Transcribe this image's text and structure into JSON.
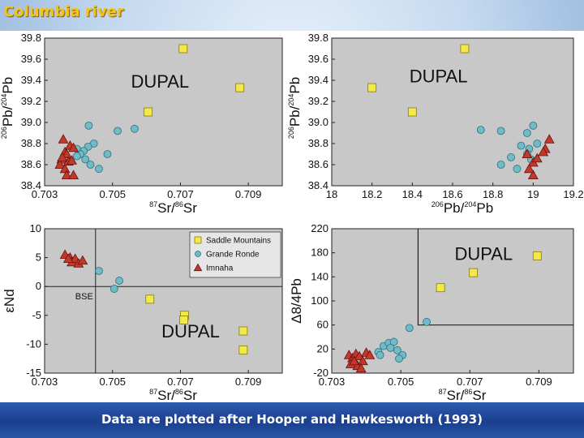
{
  "page": {
    "title": "Columbia river",
    "caption": "Data are plotted after Hooper and Hawkesworth (1993)"
  },
  "colors": {
    "plot_background": "#c8c8c8",
    "saddle_mountains": "#f2ea4c",
    "grande_ronde": "#6fbcc8",
    "imnaha": "#c0392b",
    "title": "#f3c51c",
    "caption_bar": "#1f4596"
  },
  "legend": {
    "items": [
      {
        "label": "Saddle Mountains",
        "marker": "square"
      },
      {
        "label": "Grande Ronde",
        "marker": "circle"
      },
      {
        "label": "Imnaha",
        "marker": "triangle"
      }
    ]
  },
  "chart_data": [
    {
      "id": "pb-vs-sr",
      "type": "scatter",
      "xlabel": "87Sr/86Sr",
      "ylabel": "206Pb/204Pb",
      "xlim": [
        0.703,
        0.71
      ],
      "ylim": [
        38.4,
        39.8
      ],
      "xticks": [
        "0.703",
        "0.705",
        "0.707",
        "0.709"
      ],
      "xtick_values": [
        0.703,
        0.705,
        0.707,
        0.709
      ],
      "yticks": [
        "39.8",
        "39.6",
        "39.4",
        "39.2",
        "39.0",
        "38.8",
        "38.6",
        "38.4"
      ],
      "ytick_values": [
        39.8,
        39.6,
        39.4,
        39.2,
        39.0,
        38.8,
        38.6,
        38.4
      ],
      "grid": false,
      "annotations": [
        {
          "text": "DUPAL",
          "x": 0.7064,
          "y": 39.33,
          "size": 22
        }
      ],
      "series": [
        {
          "name": "Saddle Mountains",
          "marker": "square",
          "points": [
            [
              0.70708,
              39.7
            ],
            [
              0.70875,
              39.33
            ],
            [
              0.70605,
              39.1
            ]
          ]
        },
        {
          "name": "Grande Ronde",
          "marker": "circle",
          "points": [
            [
              0.7043,
              38.97
            ],
            [
              0.70445,
              38.8
            ],
            [
              0.70428,
              38.77
            ],
            [
              0.70415,
              38.73
            ],
            [
              0.70405,
              38.7
            ],
            [
              0.70395,
              38.68
            ],
            [
              0.7042,
              38.65
            ],
            [
              0.70435,
              38.6
            ],
            [
              0.7046,
              38.56
            ],
            [
              0.70485,
              38.7
            ],
            [
              0.70515,
              38.92
            ],
            [
              0.70565,
              38.94
            ],
            [
              0.70395,
              38.75
            ]
          ]
        },
        {
          "name": "Imnaha",
          "marker": "triangle",
          "points": [
            [
              0.70355,
              38.84
            ],
            [
              0.7036,
              38.72
            ],
            [
              0.70365,
              38.7
            ],
            [
              0.70375,
              38.78
            ],
            [
              0.70385,
              38.76
            ],
            [
              0.7035,
              38.65
            ],
            [
              0.70345,
              38.6
            ],
            [
              0.7036,
              38.56
            ],
            [
              0.7037,
              38.63
            ],
            [
              0.7038,
              38.64
            ],
            [
              0.70365,
              38.5
            ],
            [
              0.70385,
              38.5
            ],
            [
              0.70352,
              38.67
            ]
          ]
        }
      ]
    },
    {
      "id": "pb-vs-pb",
      "type": "scatter",
      "xlabel": "206Pb/204Pb",
      "ylabel": "206Pb/204Pb",
      "xlim": [
        18.0,
        19.2
      ],
      "ylim": [
        38.4,
        39.8
      ],
      "xticks": [
        "18",
        "18.2",
        "18.4",
        "18.6",
        "18.8",
        "19",
        "19.2"
      ],
      "xtick_values": [
        18.0,
        18.2,
        18.4,
        18.6,
        18.8,
        19.0,
        19.2
      ],
      "yticks": [
        "39.8",
        "39.6",
        "39.4",
        "39.2",
        "39.0",
        "38.8",
        "38.6",
        "38.4"
      ],
      "ytick_values": [
        39.8,
        39.6,
        39.4,
        39.2,
        39.0,
        38.8,
        38.6,
        38.4
      ],
      "grid": false,
      "annotations": [
        {
          "text": "DUPAL",
          "x": 18.53,
          "y": 39.38,
          "size": 22
        }
      ],
      "series": [
        {
          "name": "Saddle Mountains",
          "marker": "square",
          "points": [
            [
              18.66,
              39.7
            ],
            [
              18.2,
              39.33
            ],
            [
              18.4,
              39.1
            ]
          ]
        },
        {
          "name": "Grande Ronde",
          "marker": "circle",
          "points": [
            [
              18.74,
              38.93
            ],
            [
              18.84,
              38.92
            ],
            [
              19.0,
              38.97
            ],
            [
              18.94,
              38.78
            ],
            [
              18.98,
              38.75
            ],
            [
              19.02,
              38.8
            ],
            [
              18.97,
              38.7
            ],
            [
              18.99,
              38.65
            ],
            [
              18.89,
              38.67
            ],
            [
              18.84,
              38.6
            ],
            [
              18.92,
              38.56
            ],
            [
              18.97,
              38.9
            ]
          ]
        },
        {
          "name": "Imnaha",
          "marker": "triangle",
          "points": [
            [
              18.97,
              38.7
            ],
            [
              19.0,
              38.62
            ],
            [
              19.06,
              38.75
            ],
            [
              19.08,
              38.84
            ],
            [
              19.05,
              38.72
            ],
            [
              19.0,
              38.5
            ],
            [
              18.98,
              38.56
            ],
            [
              19.02,
              38.66
            ]
          ]
        }
      ]
    },
    {
      "id": "nd-vs-sr",
      "type": "scatter",
      "xlabel": "87Sr/86Sr",
      "ylabel": "εNd",
      "xlim": [
        0.703,
        0.71
      ],
      "ylim": [
        -15,
        10
      ],
      "xticks": [
        "0.703",
        "0.705",
        "0.707",
        "0.709"
      ],
      "xtick_values": [
        0.703,
        0.705,
        0.707,
        0.709
      ],
      "yticks": [
        "10",
        "5",
        "0",
        "-5",
        "-10",
        "-15"
      ],
      "ytick_values": [
        10,
        5,
        0,
        -5,
        -10,
        -15
      ],
      "grid": false,
      "bse": {
        "label": "BSE",
        "x": 0.7045,
        "y": 0
      },
      "annotations": [
        {
          "text": "DUPAL",
          "x": 0.7073,
          "y": -8.8,
          "size": 22
        }
      ],
      "series": [
        {
          "name": "Saddle Mountains",
          "marker": "square",
          "points": [
            [
              0.7061,
              -2.2
            ],
            [
              0.70712,
              -5.0
            ],
            [
              0.7071,
              -5.8
            ],
            [
              0.70885,
              -7.7
            ],
            [
              0.70885,
              -11.0
            ]
          ]
        },
        {
          "name": "Grande Ronde",
          "marker": "circle",
          "points": [
            [
              0.7046,
              2.7
            ],
            [
              0.70505,
              -0.4
            ],
            [
              0.7052,
              1.0
            ]
          ]
        },
        {
          "name": "Imnaha",
          "marker": "triangle",
          "points": [
            [
              0.7036,
              5.5
            ],
            [
              0.70375,
              5.0
            ],
            [
              0.7038,
              4.2
            ],
            [
              0.7039,
              4.8
            ],
            [
              0.704,
              4.0
            ],
            [
              0.70412,
              4.5
            ],
            [
              0.7037,
              4.8
            ]
          ]
        }
      ]
    },
    {
      "id": "d84pb-vs-sr",
      "type": "scatter",
      "xlabel": "87Sr/86Sr",
      "ylabel": "Δ8/4Pb",
      "xlim": [
        0.703,
        0.71
      ],
      "ylim": [
        -20,
        220
      ],
      "xticks": [
        "0.703",
        "0.705",
        "0.707",
        "0.709"
      ],
      "xtick_values": [
        0.703,
        0.705,
        0.707,
        0.709
      ],
      "yticks": [
        "220",
        "180",
        "140",
        "100",
        "60",
        "20",
        "-20"
      ],
      "ytick_values": [
        220,
        180,
        140,
        100,
        60,
        20,
        -20
      ],
      "grid": false,
      "dupal_box": {
        "x_from": 0.7055,
        "x_to": 0.71,
        "y_from": 60,
        "y_to": 220
      },
      "annotations": [
        {
          "text": "DUPAL",
          "x": 0.7074,
          "y": 168,
          "size": 22
        }
      ],
      "series": [
        {
          "name": "Saddle Mountains",
          "marker": "square",
          "points": [
            [
              0.70615,
              122
            ],
            [
              0.7071,
              147
            ],
            [
              0.70895,
              175
            ]
          ]
        },
        {
          "name": "Grande Ronde",
          "marker": "circle",
          "points": [
            [
              0.70435,
              15
            ],
            [
              0.7045,
              25
            ],
            [
              0.70465,
              30
            ],
            [
              0.7048,
              32
            ],
            [
              0.7047,
              22
            ],
            [
              0.7049,
              18
            ],
            [
              0.70505,
              10
            ],
            [
              0.70525,
              55
            ],
            [
              0.70575,
              65
            ],
            [
              0.70495,
              4
            ],
            [
              0.7044,
              10
            ]
          ]
        },
        {
          "name": "Imnaha",
          "marker": "triangle",
          "points": [
            [
              0.7035,
              10
            ],
            [
              0.7036,
              5
            ],
            [
              0.7037,
              12
            ],
            [
              0.7038,
              8
            ],
            [
              0.7039,
              0
            ],
            [
              0.70355,
              -5
            ],
            [
              0.70375,
              -8
            ],
            [
              0.704,
              14
            ],
            [
              0.7041,
              10
            ],
            [
              0.70365,
              0
            ],
            [
              0.70385,
              -12
            ]
          ]
        }
      ]
    }
  ]
}
